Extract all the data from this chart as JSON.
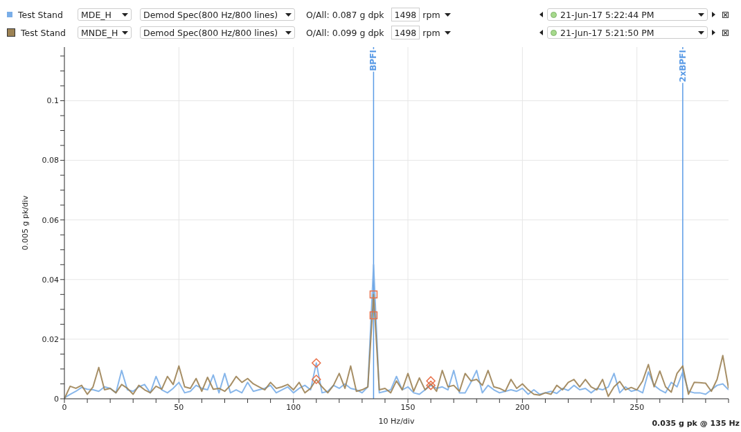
{
  "chart_data": {
    "type": "line",
    "xlabel": "10 Hz/div",
    "ylabel": "0.005 g pk/div",
    "annotations": [
      "MDE_H",
      "Demod Spec(800 Hz/800 lines)",
      "O/All: 0.087 g dpk",
      "1498",
      "rpm",
      "21-Jun-17 5:22:44 PM",
      "MNDE_H",
      "Demod Spec(800 Hz/800 lines)",
      "O/All: 0.099 g dpk",
      "1498",
      "rpm",
      "21-Jun-17 5:21:50 PM",
      "0.035 g pk @ 135 Hz"
    ],
    "x": [
      0,
      2.5,
      5,
      7.5,
      10,
      12.5,
      15,
      17.5,
      20,
      22.5,
      25,
      27.5,
      30,
      32.5,
      35,
      37.5,
      40,
      42.5,
      45,
      47.5,
      50,
      52.5,
      55,
      57.5,
      60,
      62.5,
      65,
      67.5,
      70,
      72.5,
      75,
      77.5,
      80,
      82.5,
      85,
      87.5,
      90,
      92.5,
      95,
      97.5,
      100,
      102.5,
      105,
      107.5,
      110,
      112.5,
      115,
      117.5,
      120,
      122.5,
      125,
      127.5,
      130,
      132.5,
      135,
      137.5,
      140,
      142.5,
      145,
      147.5,
      150,
      152.5,
      155,
      157.5,
      160,
      162.5,
      165,
      167.5,
      170,
      172.5,
      175,
      177.5,
      180,
      182.5,
      185,
      187.5,
      190,
      192.5,
      195,
      197.5,
      200,
      202.5,
      205,
      207.5,
      210,
      212.5,
      215,
      217.5,
      220,
      222.5,
      225,
      227.5,
      230,
      232.5,
      235,
      237.5,
      240,
      242.5,
      245,
      247.5,
      250,
      252.5,
      255,
      257.5,
      260,
      262.5,
      265,
      267.5,
      270,
      272.5,
      275,
      277.5,
      280,
      282.5,
      285,
      287.5,
      290
    ],
    "series": [
      {
        "name": "Test Stand",
        "color": "#7aaee8",
        "values": [
          0.0003,
          0.0015,
          0.0025,
          0.0038,
          0.0032,
          0.003,
          0.0025,
          0.004,
          0.0035,
          0.002,
          0.0095,
          0.003,
          0.0025,
          0.004,
          0.0048,
          0.002,
          0.0075,
          0.003,
          0.002,
          0.0035,
          0.0055,
          0.002,
          0.0025,
          0.0045,
          0.0035,
          0.003,
          0.008,
          0.002,
          0.0085,
          0.002,
          0.003,
          0.002,
          0.0055,
          0.0025,
          0.003,
          0.0035,
          0.0045,
          0.002,
          0.003,
          0.004,
          0.002,
          0.0035,
          0.0045,
          0.003,
          0.012,
          0.002,
          0.0025,
          0.0045,
          0.0035,
          0.005,
          0.0035,
          0.003,
          0.002,
          0.004,
          0.045,
          0.002,
          0.0025,
          0.003,
          0.0075,
          0.003,
          0.004,
          0.002,
          0.0015,
          0.003,
          0.0045,
          0.0035,
          0.004,
          0.003,
          0.0095,
          0.002,
          0.002,
          0.0055,
          0.0095,
          0.002,
          0.0045,
          0.003,
          0.002,
          0.0025,
          0.003,
          0.0025,
          0.0035,
          0.0015,
          0.003,
          0.0015,
          0.002,
          0.0025,
          0.0018,
          0.0035,
          0.0028,
          0.0045,
          0.003,
          0.0035,
          0.002,
          0.0035,
          0.003,
          0.004,
          0.0085,
          0.002,
          0.004,
          0.0025,
          0.003,
          0.002,
          0.009,
          0.0045,
          0.003,
          0.002,
          0.0055,
          0.004,
          0.009,
          0.0025,
          0.002,
          0.002,
          0.0015,
          0.003,
          0.0045,
          0.005,
          0.003
        ]
      },
      {
        "name": "Test Stand",
        "color": "#9c8254",
        "values": [
          0,
          0.0042,
          0.0035,
          0.0045,
          0.0015,
          0.004,
          0.0105,
          0.003,
          0.0035,
          0.002,
          0.0048,
          0.0035,
          0.0015,
          0.0045,
          0.003,
          0.002,
          0.0042,
          0.0032,
          0.0075,
          0.0048,
          0.011,
          0.004,
          0.0035,
          0.0068,
          0.0025,
          0.0072,
          0.0032,
          0.0035,
          0.0025,
          0.0045,
          0.0075,
          0.0055,
          0.0068,
          0.005,
          0.004,
          0.003,
          0.0055,
          0.0035,
          0.004,
          0.0048,
          0.003,
          0.0055,
          0.002,
          0.0035,
          0.0065,
          0.004,
          0.002,
          0.0045,
          0.0085,
          0.0035,
          0.011,
          0.0025,
          0.003,
          0.004,
          0.035,
          0.003,
          0.0035,
          0.002,
          0.006,
          0.003,
          0.0085,
          0.0025,
          0.007,
          0.003,
          0.005,
          0.0025,
          0.0095,
          0.004,
          0.0045,
          0.0025,
          0.0085,
          0.006,
          0.0065,
          0.0045,
          0.0095,
          0.004,
          0.0035,
          0.0025,
          0.0065,
          0.0035,
          0.005,
          0.003,
          0.0015,
          0.0012,
          0.002,
          0.0015,
          0.0045,
          0.003,
          0.0055,
          0.0065,
          0.004,
          0.0065,
          0.004,
          0.003,
          0.0065,
          0.0008,
          0.004,
          0.0058,
          0.003,
          0.0038,
          0.003,
          0.006,
          0.0115,
          0.004,
          0.0093,
          0.004,
          0.0022,
          0.0085,
          0.011,
          0.0015,
          0.0055,
          0.0054,
          0.0052,
          0.0025,
          0.0065,
          0.0145,
          0.0035
        ]
      },
      {
        "type": "scatter",
        "marker": "diamond",
        "color": "#e8704a",
        "x": [
          110,
          110,
          160,
          160
        ],
        "values": [
          0.012,
          0.0065,
          0.006,
          0.0045
        ]
      },
      {
        "type": "scatter",
        "marker": "square",
        "color": "#e8704a",
        "x": [
          135,
          135
        ],
        "values": [
          0.035,
          0.028
        ]
      }
    ],
    "xlim": [
      0,
      290
    ],
    "xticks": [
      0,
      {
        "value": 10,
        "label": null
      },
      {
        "value": 20,
        "label": null
      },
      {
        "value": 30,
        "label": null
      },
      {
        "value": 40,
        "label": null
      },
      50,
      {
        "value": 60,
        "label": null
      },
      {
        "value": 70,
        "label": null
      },
      {
        "value": 80,
        "label": null
      },
      {
        "value": 90,
        "label": null
      },
      100,
      {
        "value": 110,
        "label": null
      },
      {
        "value": 120,
        "label": null
      },
      {
        "value": 130,
        "label": null
      },
      {
        "value": 140,
        "label": null
      },
      150,
      {
        "value": 160,
        "label": null
      },
      {
        "value": 170,
        "label": null
      },
      {
        "value": 180,
        "label": null
      },
      {
        "value": 190,
        "label": null
      },
      200,
      {
        "value": 210,
        "label": null
      },
      {
        "value": 220,
        "label": null
      },
      {
        "value": 230,
        "label": null
      },
      {
        "value": 240,
        "label": null
      },
      250,
      {
        "value": 260,
        "label": null
      },
      {
        "value": 270,
        "label": null
      },
      {
        "value": 280,
        "label": null
      },
      {
        "value": 290,
        "label": null
      }
    ],
    "ylim": [
      0,
      0.118
    ],
    "yticks": [
      0,
      {
        "value": 0.005,
        "label": null
      },
      {
        "value": 0.01,
        "label": null
      },
      {
        "value": 0.015,
        "label": null
      },
      0.02,
      {
        "value": 0.025,
        "label": null
      },
      {
        "value": 0.03,
        "label": null
      },
      {
        "value": 0.035,
        "label": null
      },
      0.04,
      {
        "value": 0.045,
        "label": null
      },
      {
        "value": 0.05,
        "label": null
      },
      {
        "value": 0.055,
        "label": null
      },
      0.06,
      {
        "value": 0.065,
        "label": null
      },
      {
        "value": 0.07,
        "label": null
      },
      {
        "value": 0.075,
        "label": null
      },
      0.08,
      {
        "value": 0.085,
        "label": null
      },
      {
        "value": 0.09,
        "label": null
      },
      {
        "value": 0.095,
        "label": null
      },
      0.1,
      {
        "value": 0.105,
        "label": null
      },
      {
        "value": 0.11,
        "label": null
      },
      {
        "value": 0.115,
        "label": null
      }
    ],
    "ref_lines": [
      {
        "axis": "x",
        "value": 135,
        "label": "BPFI",
        "color": "#5b9be6"
      },
      {
        "axis": "x",
        "value": 270,
        "label": "2xBPFI",
        "color": "#5b9be6"
      }
    ],
    "grid": true,
    "legend": "top"
  }
}
